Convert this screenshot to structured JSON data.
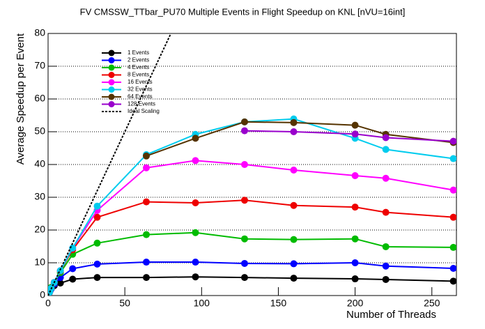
{
  "chart_data": {
    "type": "line",
    "title": "FV CMSSW_TTbar_PU70 Multiple Events in Flight Speedup on KNL [nVU=16int]",
    "x_label": "Number of Threads",
    "y_label": "Average Speedup per Event",
    "x": [
      1,
      2,
      4,
      8,
      16,
      32,
      64,
      96,
      128,
      160,
      200,
      220,
      264
    ],
    "xlim": [
      0,
      266
    ],
    "xticks": [
      0,
      50,
      100,
      150,
      200,
      250
    ],
    "ylim": [
      0,
      80
    ],
    "yticks": [
      0,
      10,
      20,
      30,
      40,
      50,
      60,
      70,
      80
    ],
    "grid": true,
    "legend": "upper left",
    "series": [
      {
        "name": "1 Events",
        "color": "#000000",
        "values": [
          1,
          2,
          3,
          3.8,
          5,
          5.5,
          5.5,
          5.7,
          5.5,
          5.3,
          5.1,
          4.9,
          4.4
        ]
      },
      {
        "name": "2 Events",
        "color": "#0000ff",
        "values": [
          1,
          2,
          3.5,
          5.5,
          8.2,
          9.6,
          10.2,
          10.2,
          9.8,
          9.7,
          10,
          9,
          8.3
        ]
      },
      {
        "name": "4 Events",
        "color": "#00bb00",
        "values": [
          1.2,
          2.5,
          4,
          7,
          12.6,
          16,
          18.6,
          19.2,
          17.3,
          17.1,
          17.3,
          14.9,
          14.7
        ]
      },
      {
        "name": "8 Events",
        "color": "#ee0000",
        "values": [
          1,
          2.2,
          4,
          7.5,
          14,
          23.9,
          28.6,
          28.3,
          29.1,
          27.5,
          27,
          25.4,
          23.9
        ]
      },
      {
        "name": "16 Events",
        "color": "#ff00ff",
        "values": [
          1,
          2.2,
          4,
          7.6,
          14.5,
          26,
          39,
          41.2,
          40,
          38.3,
          36.6,
          35.8,
          32.2
        ]
      },
      {
        "name": "32 Events",
        "color": "#00ccee",
        "values": [
          1,
          2.2,
          4,
          7.6,
          14.5,
          27.3,
          43,
          49.2,
          53,
          53.9,
          48,
          44.6,
          41.8
        ]
      },
      {
        "name": "64 Events",
        "color": "#553300",
        "values": [
          null,
          null,
          null,
          null,
          null,
          null,
          42.6,
          48,
          53,
          52.8,
          52,
          49.2,
          46.7
        ]
      },
      {
        "name": "128 Events",
        "color": "#9900cc",
        "values": [
          null,
          null,
          null,
          null,
          null,
          null,
          null,
          null,
          50.3,
          50,
          49.3,
          48.2,
          47.1
        ]
      },
      {
        "name": "Ideal Scaling",
        "color": "#000000",
        "dashed": true,
        "x": [
          0,
          80
        ],
        "values": [
          0,
          80
        ]
      }
    ]
  }
}
